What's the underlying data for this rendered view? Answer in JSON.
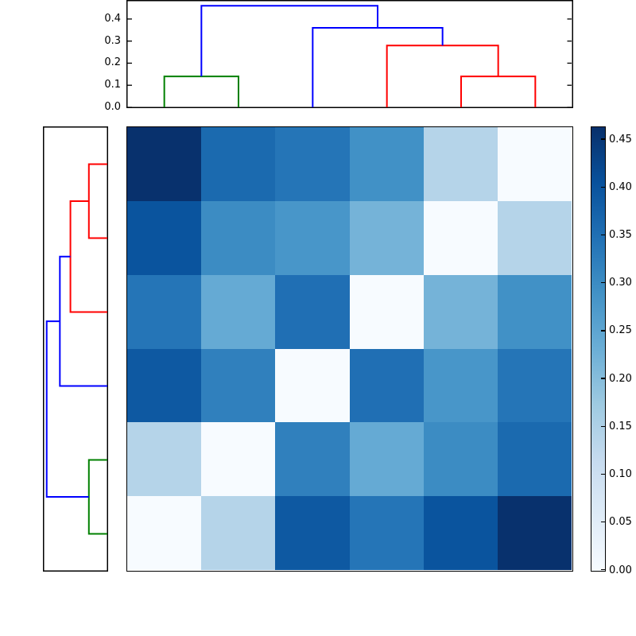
{
  "figure": {
    "background": "#ffffff",
    "description": "Hierarchical clustering figure: top dendrogram, left dendrogram, 6x6 distance-matrix heatmap, vertical colorbar"
  },
  "chart_data": {
    "type": "heatmap",
    "title": "",
    "xlabel": "",
    "ylabel": "",
    "grid": false,
    "colormap": {
      "name": "Blues",
      "vmin": 0.0,
      "vmax": 0.4625,
      "stops": [
        [
          0.0,
          "#f7fbff"
        ],
        [
          0.125,
          "#deebf7"
        ],
        [
          0.25,
          "#c6dbef"
        ],
        [
          0.375,
          "#9ecae1"
        ],
        [
          0.5,
          "#6baed6"
        ],
        [
          0.625,
          "#4292c6"
        ],
        [
          0.75,
          "#2171b5"
        ],
        [
          0.875,
          "#08519c"
        ],
        [
          1.0,
          "#08306b"
        ]
      ]
    },
    "heatmap": {
      "n_rows": 6,
      "n_cols": 6,
      "values": [
        [
          0.46,
          0.36,
          0.34,
          0.29,
          0.14,
          0.0
        ],
        [
          0.4,
          0.3,
          0.28,
          0.22,
          0.0,
          0.14
        ],
        [
          0.34,
          0.24,
          0.35,
          0.0,
          0.22,
          0.29
        ],
        [
          0.39,
          0.32,
          0.0,
          0.35,
          0.28,
          0.34
        ],
        [
          0.14,
          0.0,
          0.32,
          0.24,
          0.3,
          0.36
        ],
        [
          0.0,
          0.14,
          0.39,
          0.34,
          0.4,
          0.46
        ]
      ]
    },
    "top_dendrogram": {
      "orientation": "top",
      "axis_max": 0.4825,
      "link_colors": {
        "above_threshold": "#0000ff",
        "cluster1": "#008000",
        "cluster2": "#ff0000"
      },
      "yticks": [
        {
          "value": 0.0,
          "label": "0.0"
        },
        {
          "value": 0.1,
          "label": "0.1"
        },
        {
          "value": 0.2,
          "label": "0.2"
        },
        {
          "value": 0.3,
          "label": "0.3"
        },
        {
          "value": 0.4,
          "label": "0.4"
        }
      ],
      "links": [
        {
          "color": "#008000",
          "x1": 1.0,
          "base1": 0.0,
          "x2": 2.0,
          "base2": 0.0,
          "height": 0.14
        },
        {
          "color": "#ff0000",
          "x1": 5.0,
          "base1": 0.0,
          "x2": 6.0,
          "base2": 0.0,
          "height": 0.14
        },
        {
          "color": "#ff0000",
          "x1": 4.0,
          "base1": 0.0,
          "x2": 5.5,
          "base2": 0.14,
          "height": 0.28
        },
        {
          "color": "#0000ff",
          "x1": 3.0,
          "base1": 0.0,
          "x2": 4.75,
          "base2": 0.28,
          "height": 0.36
        },
        {
          "color": "#0000ff",
          "x1": 1.5,
          "base1": 0.14,
          "x2": 3.875,
          "base2": 0.36,
          "height": 0.46
        }
      ]
    },
    "left_dendrogram": {
      "orientation": "left",
      "axis_max": 0.4825,
      "links": [
        {
          "color": "#ff0000",
          "x1": 1.0,
          "base1": 0.0,
          "x2": 2.0,
          "base2": 0.0,
          "height": 0.14
        },
        {
          "color": "#ff0000",
          "x1": 1.5,
          "base1": 0.14,
          "x2": 3.0,
          "base2": 0.0,
          "height": 0.28
        },
        {
          "color": "#0000ff",
          "x1": 2.25,
          "base1": 0.28,
          "x2": 4.0,
          "base2": 0.0,
          "height": 0.36
        },
        {
          "color": "#008000",
          "x1": 5.0,
          "base1": 0.0,
          "x2": 6.0,
          "base2": 0.0,
          "height": 0.14
        },
        {
          "color": "#0000ff",
          "x1": 3.125,
          "base1": 0.36,
          "x2": 5.5,
          "base2": 0.14,
          "height": 0.46
        }
      ]
    },
    "colorbar": {
      "ticks": [
        {
          "value": 0.45,
          "label": "0.45"
        },
        {
          "value": 0.4,
          "label": "0.40"
        },
        {
          "value": 0.35,
          "label": "0.35"
        },
        {
          "value": 0.3,
          "label": "0.30"
        },
        {
          "value": 0.25,
          "label": "0.25"
        },
        {
          "value": 0.2,
          "label": "0.20"
        },
        {
          "value": 0.15,
          "label": "0.15"
        },
        {
          "value": 0.1,
          "label": "0.10"
        },
        {
          "value": 0.05,
          "label": "0.05"
        },
        {
          "value": 0.0,
          "label": "0.00"
        }
      ]
    }
  }
}
